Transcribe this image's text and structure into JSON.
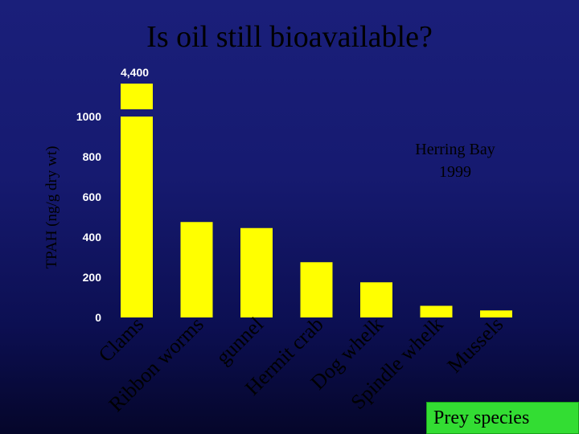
{
  "slide": {
    "title": "Is oil still bioavailable?"
  },
  "prey_label": "Prey species",
  "chart_data": {
    "type": "bar",
    "title": "Is oil still bioavailable?",
    "xlabel": "Prey species",
    "ylabel": "TPAH (ng/g dry wt)",
    "categories": [
      "Clams",
      "Ribbon worms",
      "gunnel",
      "Hermit crab",
      "Dog whelk",
      "Spindle whelk",
      "Mussels"
    ],
    "values": [
      4400,
      475,
      445,
      275,
      175,
      58,
      35
    ],
    "ylim": [
      0,
      1000
    ],
    "axis_break": true,
    "break_tick_label": "4,400",
    "yticks": [
      0,
      200,
      400,
      600,
      800,
      1000
    ],
    "ytick_labels": [
      "0",
      "200",
      "400",
      "600",
      "800",
      "1000"
    ],
    "annotation": [
      "Herring Bay",
      "1999"
    ],
    "bar_color": "#ffff00",
    "grid": false
  }
}
